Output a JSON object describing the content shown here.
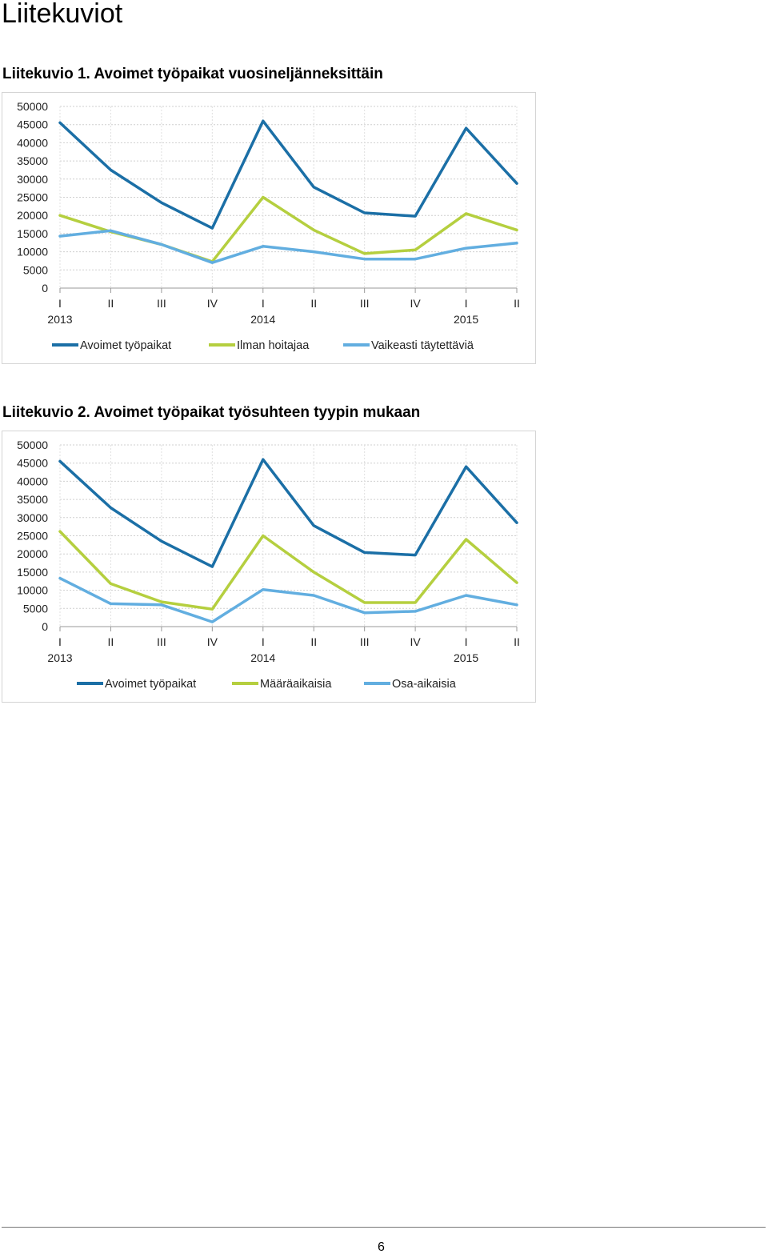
{
  "page": {
    "heading": "Liitekuviot",
    "page_number": "6"
  },
  "figures": [
    {
      "title": "Liitekuvio 1. Avoimet työpaikat vuosineljänneksittäin"
    },
    {
      "title": "Liitekuvio 2. Avoimet työpaikat työsuhteen tyypin mukaan"
    }
  ],
  "chart_data": [
    {
      "type": "line",
      "title": "Liitekuvio 1. Avoimet työpaikat vuosineljänneksittäin",
      "categories": [
        "I",
        "II",
        "III",
        "IV",
        "I",
        "II",
        "III",
        "IV",
        "I",
        "II"
      ],
      "year_labels": [
        {
          "index": 0,
          "label": "2013"
        },
        {
          "index": 4,
          "label": "2014"
        },
        {
          "index": 8,
          "label": "2015"
        }
      ],
      "ylim": [
        0,
        50000
      ],
      "yticks": [
        0,
        5000,
        10000,
        15000,
        20000,
        25000,
        30000,
        35000,
        40000,
        45000,
        50000
      ],
      "grid": true,
      "legend_position": "bottom",
      "series": [
        {
          "name": "Avoimet työpaikat",
          "color": "#1b6fa6",
          "values": [
            45500,
            32500,
            23500,
            16500,
            46000,
            27800,
            20700,
            19800,
            44000,
            28800
          ]
        },
        {
          "name": "Ilman hoitajaa",
          "color": "#b5cf3f",
          "values": [
            20000,
            15500,
            12000,
            7300,
            25000,
            16000,
            9500,
            10500,
            20500,
            16000
          ]
        },
        {
          "name": "Vaikeasti täytettäviä",
          "color": "#62aee0",
          "values": [
            14300,
            15800,
            12000,
            7000,
            11500,
            10000,
            8000,
            8000,
            11000,
            12400
          ]
        }
      ]
    },
    {
      "type": "line",
      "title": "Liitekuvio 2. Avoimet työpaikat työsuhteen tyypin mukaan",
      "categories": [
        "I",
        "II",
        "III",
        "IV",
        "I",
        "II",
        "III",
        "IV",
        "I",
        "II"
      ],
      "year_labels": [
        {
          "index": 0,
          "label": "2013"
        },
        {
          "index": 4,
          "label": "2014"
        },
        {
          "index": 8,
          "label": "2015"
        }
      ],
      "ylim": [
        0,
        50000
      ],
      "yticks": [
        0,
        5000,
        10000,
        15000,
        20000,
        25000,
        30000,
        35000,
        40000,
        45000,
        50000
      ],
      "grid": true,
      "legend_position": "bottom",
      "series": [
        {
          "name": "Avoimet työpaikat",
          "color": "#1b6fa6",
          "values": [
            45500,
            32700,
            23500,
            16500,
            46000,
            27800,
            20400,
            19700,
            44000,
            28600
          ]
        },
        {
          "name": "Määräaikaisia",
          "color": "#b5cf3f",
          "values": [
            26200,
            11800,
            6800,
            4800,
            25000,
            15000,
            6600,
            6600,
            24000,
            12100
          ]
        },
        {
          "name": "Osa-aikaisia",
          "color": "#62aee0",
          "values": [
            13300,
            6300,
            6000,
            1300,
            10200,
            8600,
            3800,
            4200,
            8600,
            6000
          ]
        }
      ]
    }
  ]
}
